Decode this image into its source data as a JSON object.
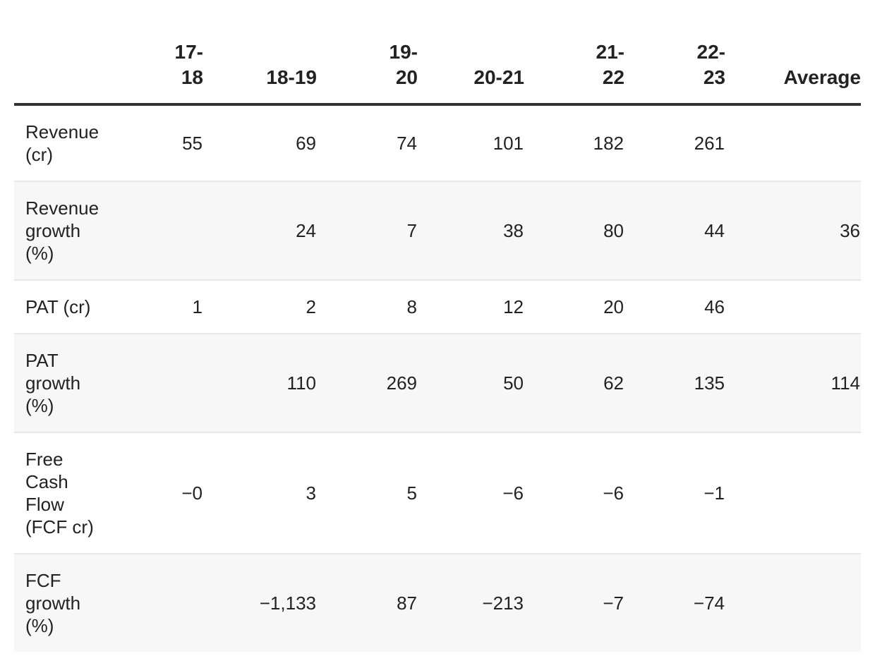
{
  "chart_data": {
    "type": "table",
    "columns": [
      "",
      "17-18",
      "18-19",
      "19-20",
      "20-21",
      "21-22",
      "22-23",
      "Average"
    ],
    "rows": [
      {
        "label": "Revenue (cr)",
        "label_lines": [
          "Revenue",
          "(cr)"
        ],
        "values": [
          "55",
          "69",
          "74",
          "101",
          "182",
          "261",
          ""
        ]
      },
      {
        "label": "Revenue growth (%)",
        "label_lines": [
          "Revenue",
          "growth",
          "(%)"
        ],
        "values": [
          "",
          "24",
          "7",
          "38",
          "80",
          "44",
          "36"
        ]
      },
      {
        "label": "PAT (cr)",
        "label_lines": [
          "PAT (cr)"
        ],
        "values": [
          "1",
          "2",
          "8",
          "12",
          "20",
          "46",
          ""
        ]
      },
      {
        "label": "PAT growth (%)",
        "label_lines": [
          "PAT",
          "growth",
          "(%)"
        ],
        "values": [
          "",
          "110",
          "269",
          "50",
          "62",
          "135",
          "114"
        ]
      },
      {
        "label": "Free Cash Flow (FCF cr)",
        "label_lines": [
          "Free",
          "Cash",
          "Flow",
          "(FCF cr)"
        ],
        "values": [
          "−0",
          "3",
          "5",
          "−6",
          "−6",
          "−1",
          ""
        ]
      },
      {
        "label": "FCF growth (%)",
        "label_lines": [
          "FCF",
          "growth",
          "(%)"
        ],
        "values": [
          "",
          "−1,133",
          "87",
          "−213",
          "−7",
          "−74",
          ""
        ]
      }
    ]
  },
  "header_lines": {
    "c1": [
      "17-",
      "18"
    ],
    "c3": [
      "19-",
      "20"
    ],
    "c5": [
      "21-",
      "22"
    ],
    "c6": [
      "22-",
      "23"
    ]
  },
  "colors": {
    "text": "#222222",
    "header_rule": "#333333",
    "row_rule": "#e8e8e8",
    "alt_row_bg": "#f7f7f7"
  }
}
